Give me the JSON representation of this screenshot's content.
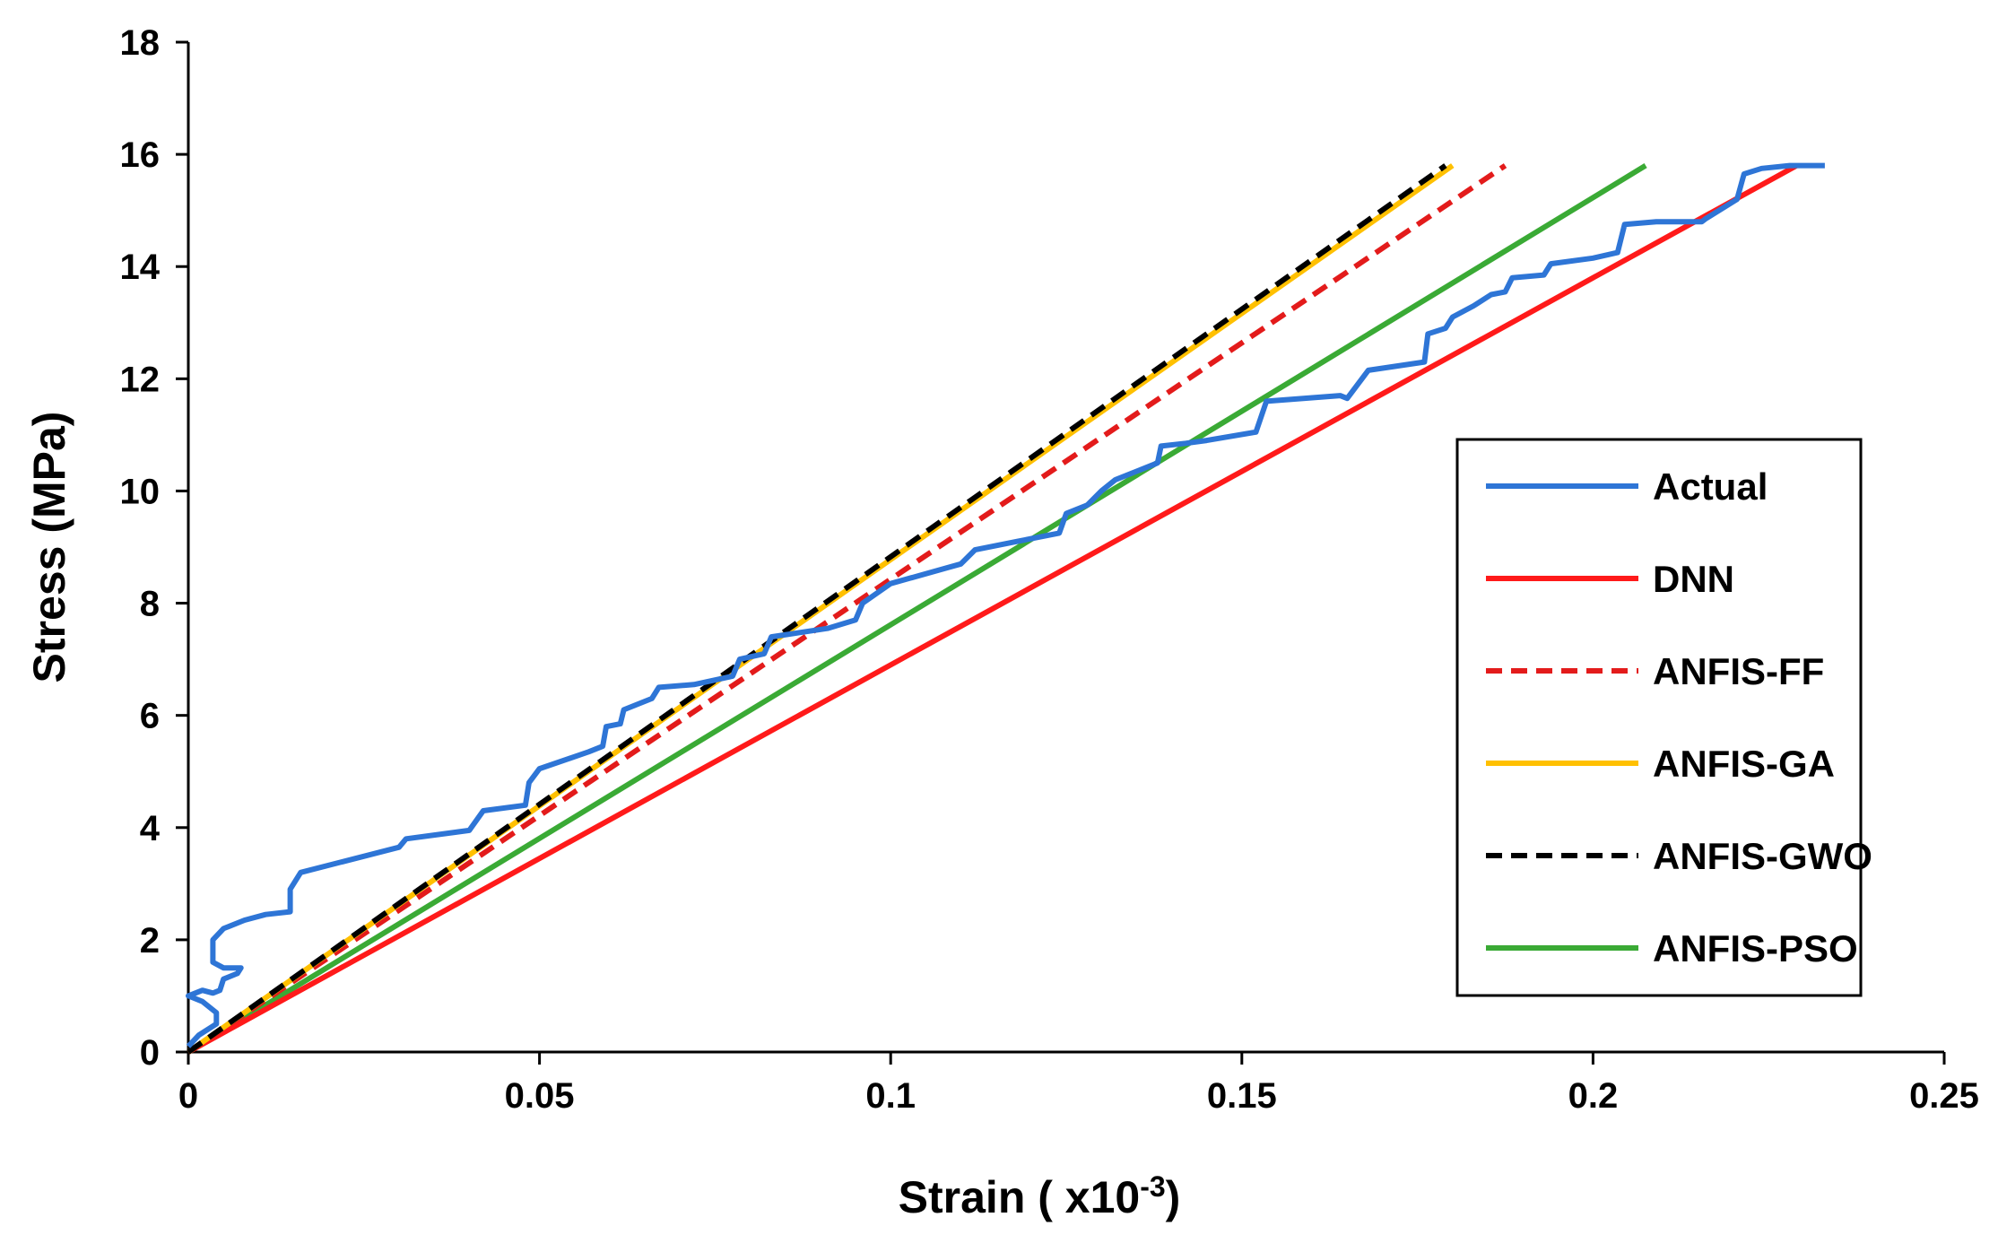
{
  "chart_data": {
    "type": "line",
    "title": "",
    "xlabel": "Strain ( x10",
    "xlabel_superscript": "-3",
    "xlabel_suffix": ")",
    "ylabel": "Stress (MPa)",
    "xlim": [
      0,
      0.25
    ],
    "ylim": [
      0,
      18
    ],
    "x_ticks": [
      0,
      0.05,
      0.1,
      0.15,
      0.2,
      0.25
    ],
    "x_tick_labels": [
      "0",
      "0.05",
      "0.1",
      "0.15",
      "0.2",
      "0.25"
    ],
    "y_ticks": [
      0,
      2,
      4,
      6,
      8,
      10,
      12,
      14,
      16,
      18
    ],
    "y_tick_labels": [
      "0",
      "2",
      "4",
      "6",
      "8",
      "10",
      "12",
      "14",
      "16",
      "18"
    ],
    "grid": false,
    "legend_position": "right",
    "series": [
      {
        "name": "Actual",
        "color": "#2E75D6",
        "dash": "solid",
        "points": [
          [
            0,
            0.1
          ],
          [
            0.0015,
            0.3
          ],
          [
            0.004,
            0.5
          ],
          [
            0.004,
            0.7
          ],
          [
            0.002,
            0.9
          ],
          [
            0,
            1.0
          ],
          [
            0.002,
            1.1
          ],
          [
            0.0035,
            1.05
          ],
          [
            0.0045,
            1.1
          ],
          [
            0.005,
            1.3
          ],
          [
            0.007,
            1.4
          ],
          [
            0.0075,
            1.5
          ],
          [
            0.005,
            1.5
          ],
          [
            0.0035,
            1.6
          ],
          [
            0.0035,
            2.0
          ],
          [
            0.005,
            2.2
          ],
          [
            0.008,
            2.35
          ],
          [
            0.011,
            2.45
          ],
          [
            0.0145,
            2.5
          ],
          [
            0.0145,
            2.9
          ],
          [
            0.016,
            3.2
          ],
          [
            0.03,
            3.65
          ],
          [
            0.031,
            3.8
          ],
          [
            0.04,
            3.95
          ],
          [
            0.042,
            4.3
          ],
          [
            0.048,
            4.4
          ],
          [
            0.0485,
            4.8
          ],
          [
            0.05,
            5.05
          ],
          [
            0.057,
            5.35
          ],
          [
            0.059,
            5.45
          ],
          [
            0.0595,
            5.8
          ],
          [
            0.0615,
            5.85
          ],
          [
            0.062,
            6.1
          ],
          [
            0.066,
            6.3
          ],
          [
            0.067,
            6.5
          ],
          [
            0.072,
            6.55
          ],
          [
            0.0775,
            6.7
          ],
          [
            0.0785,
            7.0
          ],
          [
            0.082,
            7.1
          ],
          [
            0.083,
            7.4
          ],
          [
            0.091,
            7.55
          ],
          [
            0.095,
            7.7
          ],
          [
            0.096,
            8.0
          ],
          [
            0.1,
            8.35
          ],
          [
            0.11,
            8.7
          ],
          [
            0.112,
            8.95
          ],
          [
            0.118,
            9.1
          ],
          [
            0.124,
            9.25
          ],
          [
            0.125,
            9.6
          ],
          [
            0.128,
            9.75
          ],
          [
            0.13,
            10.0
          ],
          [
            0.132,
            10.2
          ],
          [
            0.138,
            10.5
          ],
          [
            0.1385,
            10.8
          ],
          [
            0.142,
            10.85
          ],
          [
            0.145,
            10.9
          ],
          [
            0.152,
            11.05
          ],
          [
            0.1535,
            11.6
          ],
          [
            0.164,
            11.7
          ],
          [
            0.165,
            11.65
          ],
          [
            0.168,
            12.15
          ],
          [
            0.176,
            12.3
          ],
          [
            0.1765,
            12.8
          ],
          [
            0.179,
            12.9
          ],
          [
            0.18,
            13.1
          ],
          [
            0.183,
            13.3
          ],
          [
            0.1855,
            13.5
          ],
          [
            0.1875,
            13.55
          ],
          [
            0.1885,
            13.8
          ],
          [
            0.193,
            13.85
          ],
          [
            0.194,
            14.05
          ],
          [
            0.2,
            14.15
          ],
          [
            0.2035,
            14.25
          ],
          [
            0.2045,
            14.75
          ],
          [
            0.209,
            14.8
          ],
          [
            0.2155,
            14.8
          ],
          [
            0.216,
            14.85
          ],
          [
            0.2205,
            15.2
          ],
          [
            0.2215,
            15.65
          ],
          [
            0.224,
            15.75
          ],
          [
            0.228,
            15.8
          ],
          [
            0.233,
            15.8
          ]
        ]
      },
      {
        "name": "DNN",
        "color": "#FF1A1A",
        "dash": "solid",
        "points": [
          [
            0,
            0
          ],
          [
            0.229,
            15.8
          ]
        ]
      },
      {
        "name": "ANFIS-FF",
        "color": "#E31B1B",
        "dash": "dashed",
        "points": [
          [
            0,
            0
          ],
          [
            0.1875,
            15.8
          ]
        ]
      },
      {
        "name": "ANFIS-GA",
        "color": "#FFC000",
        "dash": "solid",
        "points": [
          [
            0,
            0
          ],
          [
            0.18,
            15.8
          ]
        ]
      },
      {
        "name": "ANFIS-GWO",
        "color": "#000000",
        "dash": "dashed",
        "points": [
          [
            0,
            0
          ],
          [
            0.179,
            15.8
          ]
        ]
      },
      {
        "name": "ANFIS-PSO",
        "color": "#3AAA35",
        "dash": "solid",
        "points": [
          [
            0,
            0
          ],
          [
            0.2075,
            15.8
          ]
        ]
      }
    ]
  }
}
